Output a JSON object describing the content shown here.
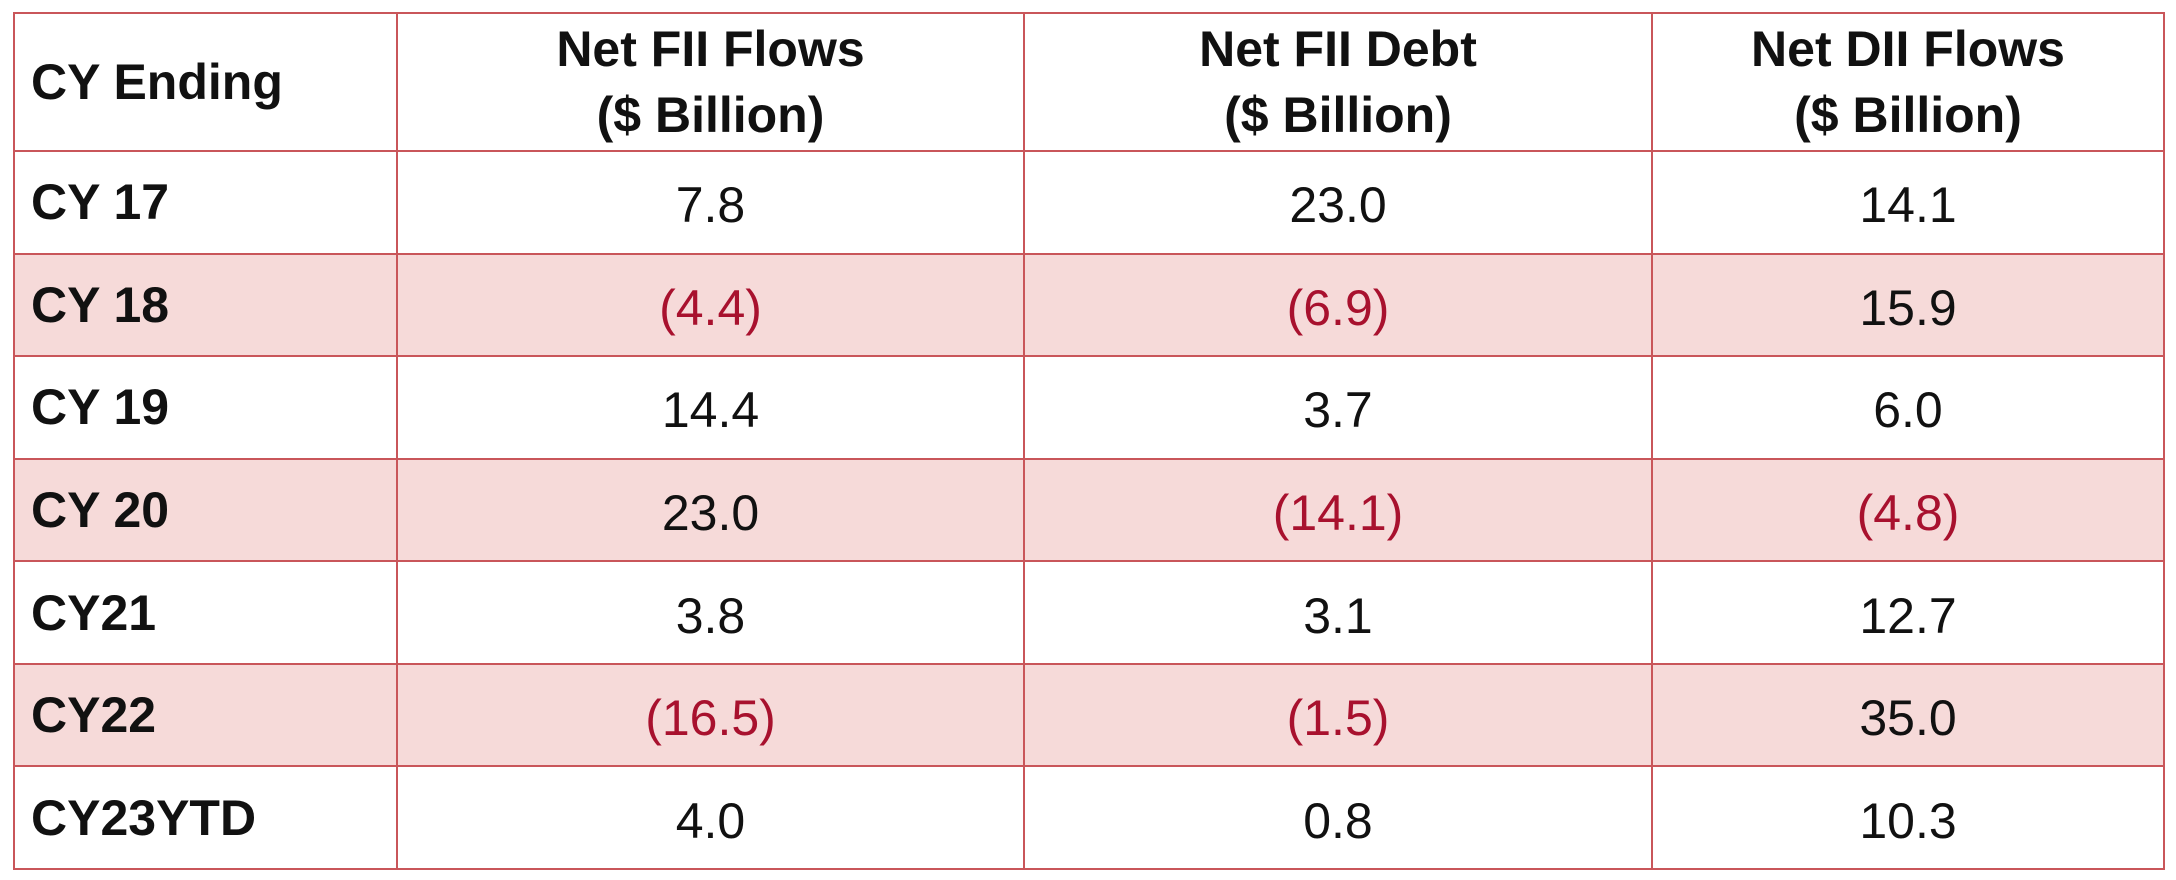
{
  "header": {
    "col1": "CY Ending",
    "col2": [
      "Net FII Flows",
      "($ Billion)"
    ],
    "col3": [
      "Net FII Debt",
      "($ Billion)"
    ],
    "col4": [
      "Net DII Flows",
      "($ Billion)"
    ]
  },
  "rows": [
    {
      "label": "CY 17",
      "fii_flows": "7.8",
      "fii_debt": "23.0",
      "dii_flows": "14.1"
    },
    {
      "label": "CY 18",
      "fii_flows": "(4.4)",
      "fii_debt": "(6.9)",
      "dii_flows": "15.9"
    },
    {
      "label": "CY 19",
      "fii_flows": "14.4",
      "fii_debt": "3.7",
      "dii_flows": "6.0"
    },
    {
      "label": "CY 20",
      "fii_flows": "23.0",
      "fii_debt": "(14.1)",
      "dii_flows": "(4.8)"
    },
    {
      "label": "CY21",
      "fii_flows": "3.8",
      "fii_debt": "3.1",
      "dii_flows": "12.7"
    },
    {
      "label": "CY22",
      "fii_flows": "(16.5)",
      "fii_debt": "(1.5)",
      "dii_flows": "35.0"
    },
    {
      "label": "CY23YTD",
      "fii_flows": "4.0",
      "fii_debt": "0.8",
      "dii_flows": "10.3"
    }
  ],
  "colors": {
    "border": "#c9565a",
    "shaded_row": "#f6dad9",
    "negative_text": "#a8112e"
  }
}
